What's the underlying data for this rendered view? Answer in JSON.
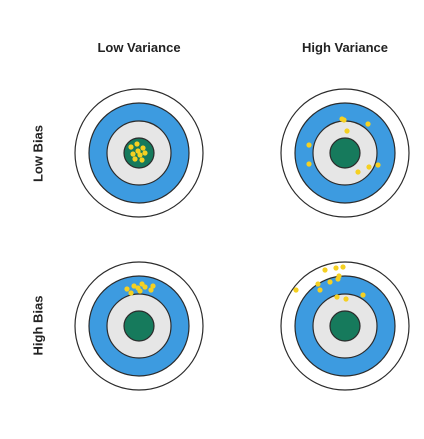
{
  "columns": [
    {
      "label": "Low Variance"
    },
    {
      "label": "High Variance"
    }
  ],
  "rows": [
    {
      "label": "Low Bias"
    },
    {
      "label": "High Bias"
    }
  ],
  "colors": {
    "outer_ring": "#ffffff",
    "middle_ring": "#3d9be0",
    "inner_ring": "#e6e6e6",
    "bullseye": "#167a5c",
    "ring_stroke": "#2b2b2b",
    "hit": "#f5d021"
  },
  "targets": [
    {
      "name": "low-bias-low-variance",
      "hits": [
        [
          -8,
          -6
        ],
        [
          -2,
          -9
        ],
        [
          4,
          -5
        ],
        [
          -6,
          1
        ],
        [
          1,
          2
        ],
        [
          -4,
          6
        ],
        [
          3,
          7
        ],
        [
          -1,
          -2
        ],
        [
          6,
          0
        ]
      ]
    },
    {
      "name": "low-bias-high-variance",
      "hits": [
        [
          -3,
          -34
        ],
        [
          23,
          -29
        ],
        [
          -36,
          -8
        ],
        [
          2,
          -22
        ],
        [
          -36,
          11
        ],
        [
          24,
          14
        ],
        [
          33,
          12
        ],
        [
          13,
          19
        ],
        [
          -1,
          -33
        ]
      ]
    },
    {
      "name": "high-bias-low-variance",
      "hits": [
        [
          -12,
          -37
        ],
        [
          -5,
          -40
        ],
        [
          1,
          -35
        ],
        [
          6,
          -39
        ],
        [
          12,
          -36
        ],
        [
          -8,
          -33
        ],
        [
          3,
          -42
        ],
        [
          -1,
          -38
        ],
        [
          14,
          -40
        ]
      ]
    },
    {
      "name": "high-bias-high-variance",
      "hits": [
        [
          -20,
          -56
        ],
        [
          -15,
          -44
        ],
        [
          -9,
          -58
        ],
        [
          -7,
          -47
        ],
        [
          -2,
          -59
        ],
        [
          -27,
          -42
        ],
        [
          -6,
          -50
        ],
        [
          -49,
          -36
        ],
        [
          -25,
          -36
        ],
        [
          -8,
          -29
        ],
        [
          1,
          -27
        ],
        [
          18,
          -31
        ]
      ]
    }
  ]
}
